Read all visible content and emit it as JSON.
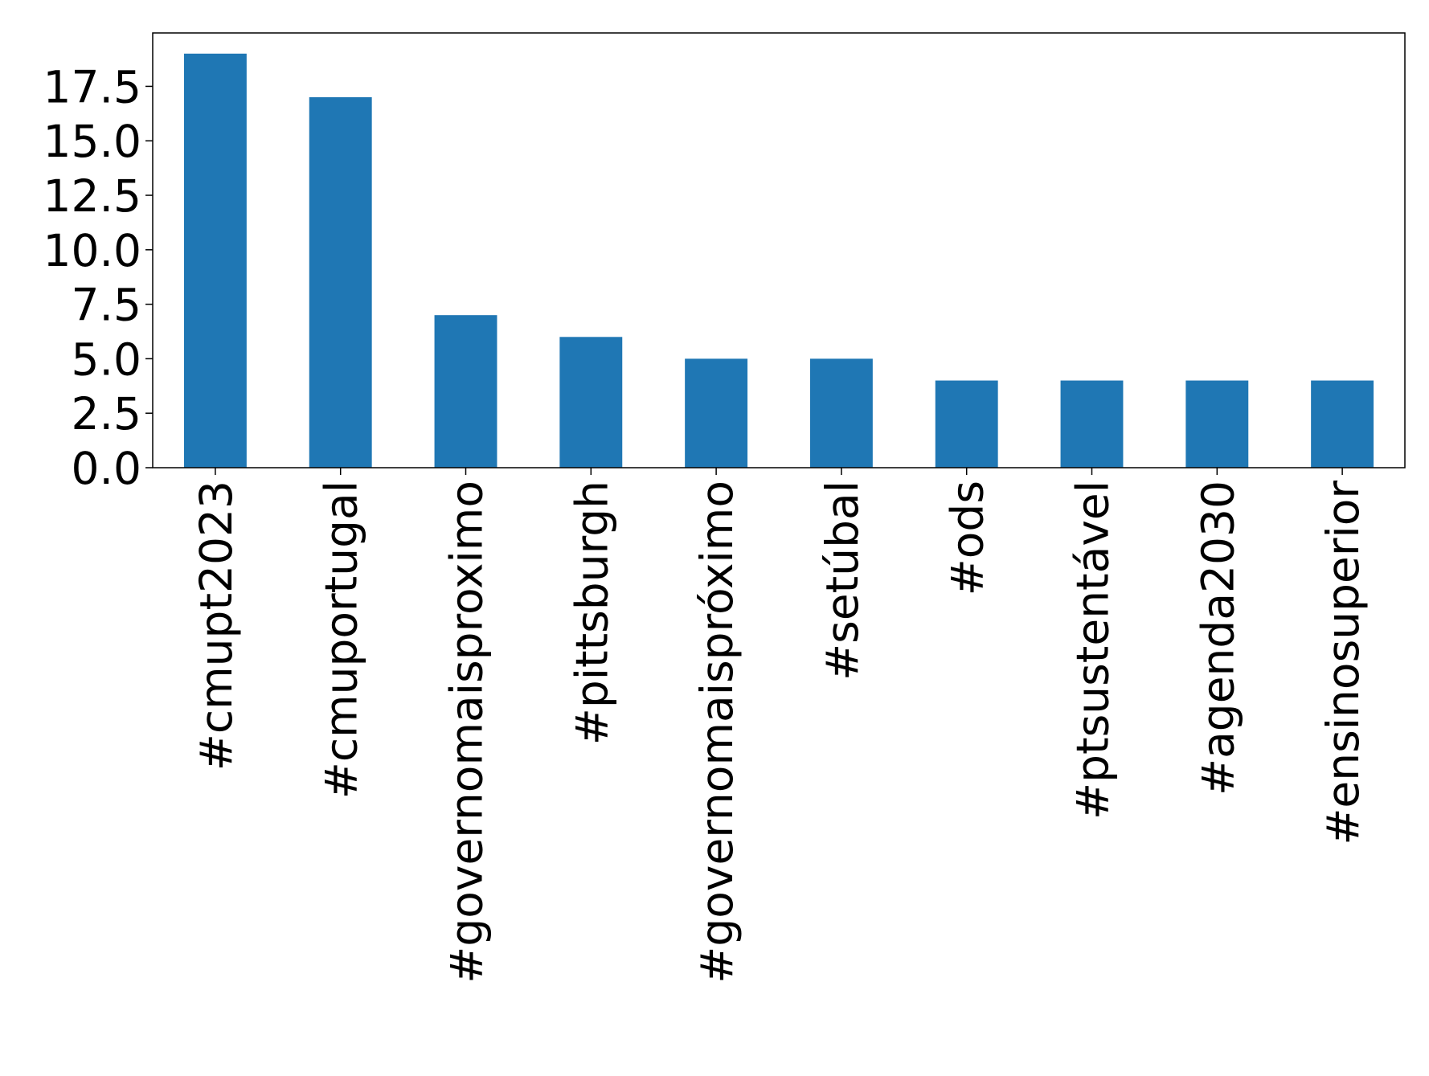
{
  "chart_data": {
    "type": "bar",
    "categories": [
      "#cmupt2023",
      "#cmuportugal",
      "#governomaisproximo",
      "#pittsburgh",
      "#governomaispróximo",
      "#setúbal",
      "#ods",
      "#ptsustentável",
      "#agenda2030",
      "#ensinosuperior"
    ],
    "values": [
      19,
      17,
      7,
      6,
      5,
      5,
      4,
      4,
      4,
      4
    ],
    "color": "#1f77b4",
    "ylim": [
      0,
      19.95
    ],
    "yticks": [
      {
        "value": 0,
        "label": "0.0"
      },
      2.5,
      {
        "value": 5,
        "label": "5.0"
      },
      7.5,
      {
        "value": 10,
        "label": "10.0"
      },
      12.5,
      {
        "value": 15,
        "label": "15.0"
      },
      17.5
    ],
    "grid": false
  }
}
